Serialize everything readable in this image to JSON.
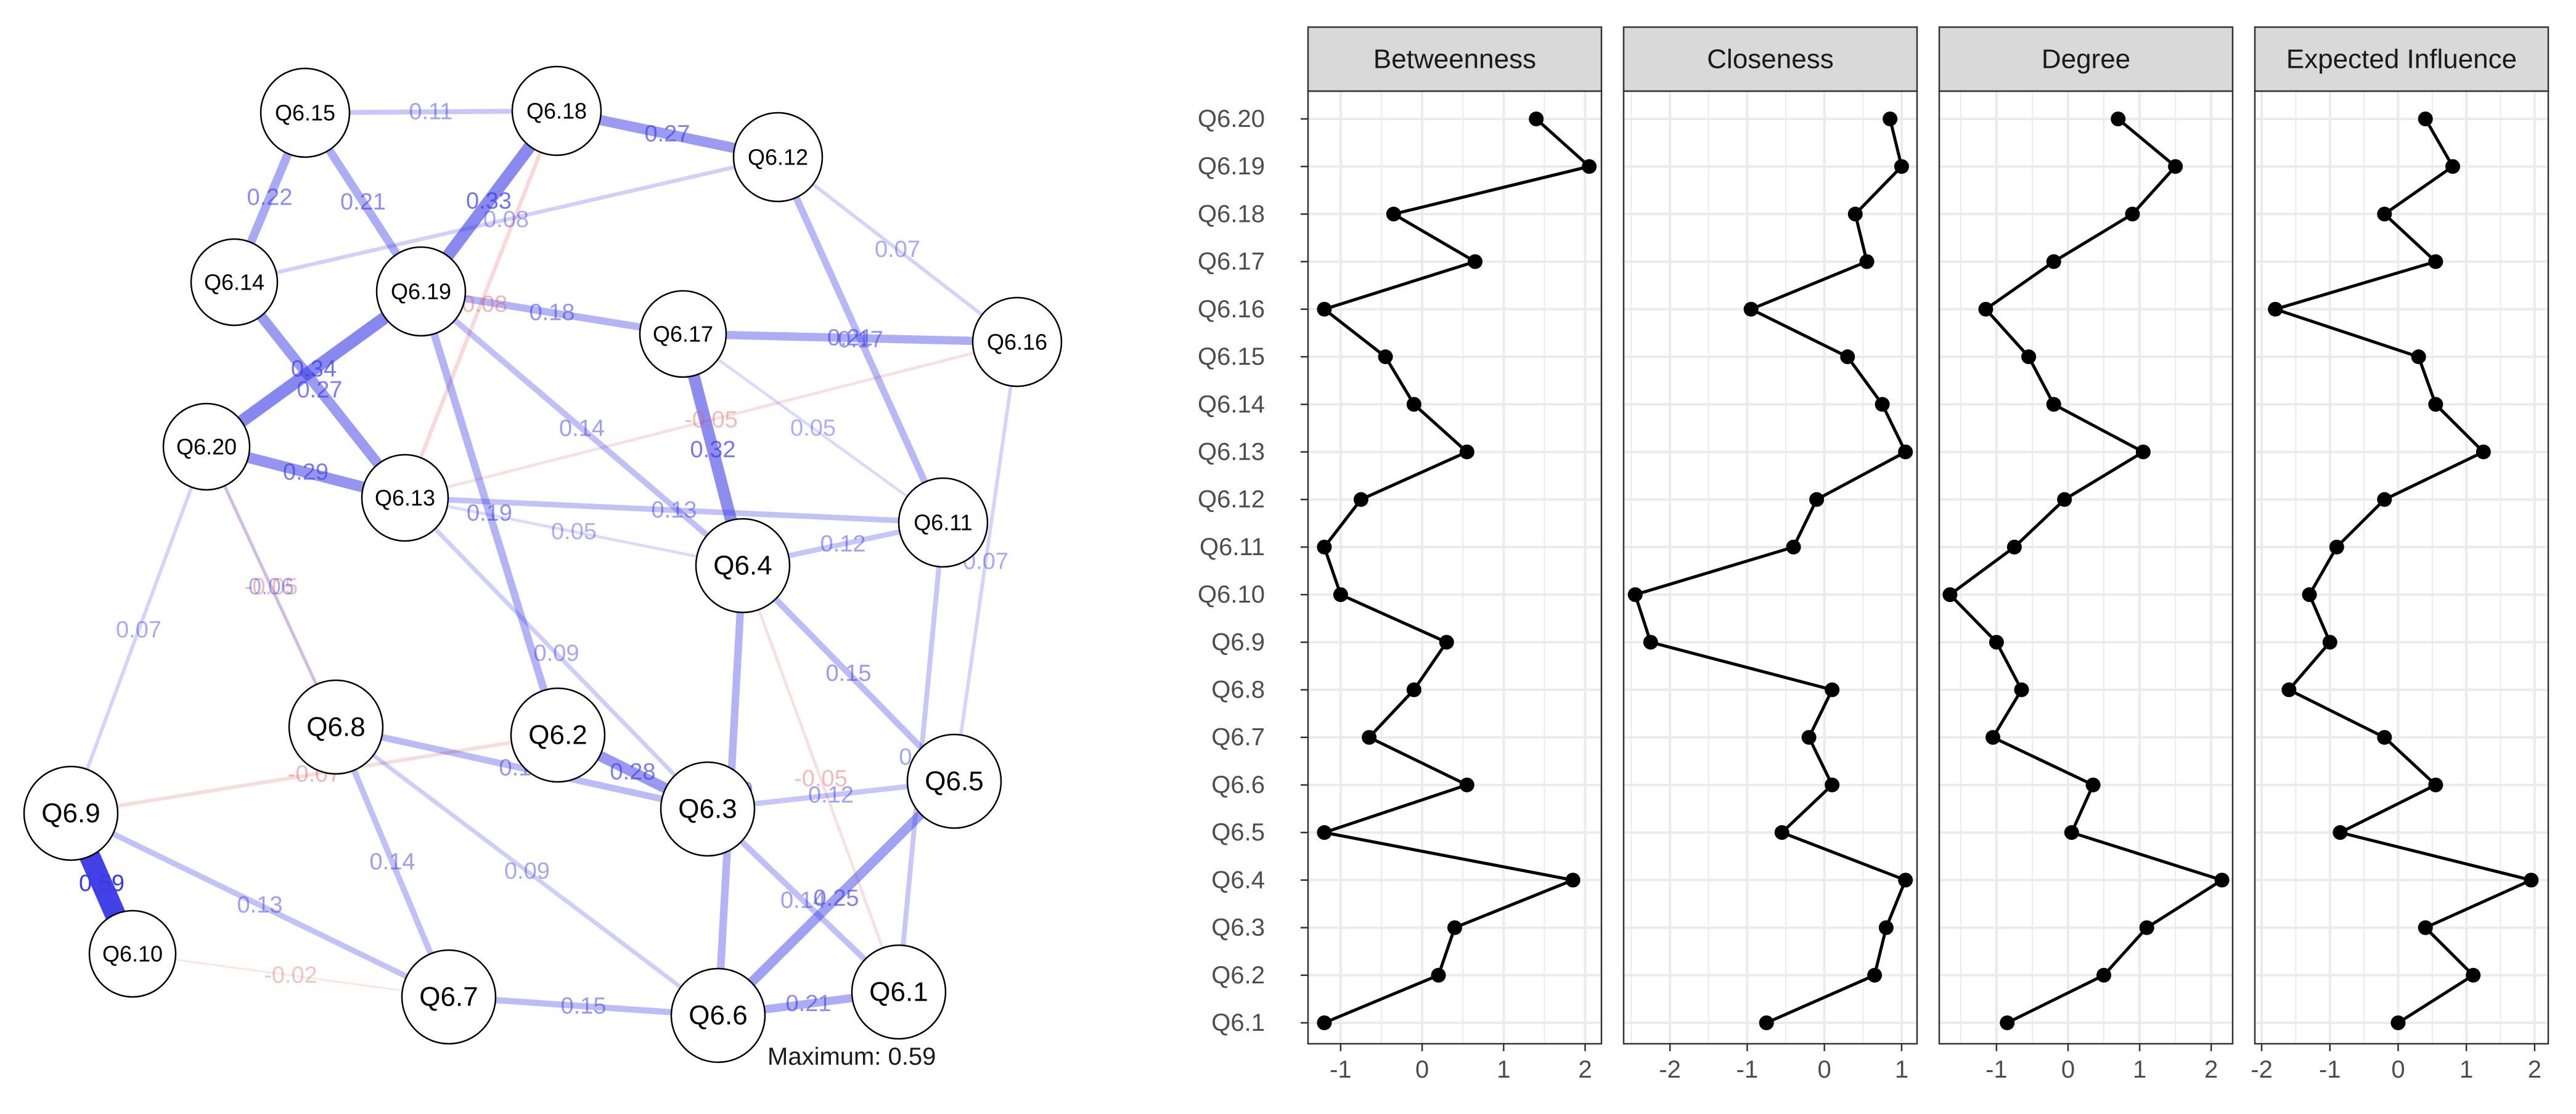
{
  "colors": {
    "positive_edge": "#3b3be6",
    "negative_edge": "#e05a5a",
    "node_fill": "#ffffff",
    "node_stroke": "#000000",
    "strip_fill": "#d9d9d9",
    "grid": "#ebebeb",
    "line": "#000000"
  },
  "chart_data": [
    {
      "type": "network",
      "title": "",
      "caption": "Maximum: 0.59",
      "maximum": 0.59,
      "nodes": [
        {
          "id": "Q6.1"
        },
        {
          "id": "Q6.2"
        },
        {
          "id": "Q6.3"
        },
        {
          "id": "Q6.4"
        },
        {
          "id": "Q6.5"
        },
        {
          "id": "Q6.6"
        },
        {
          "id": "Q6.7"
        },
        {
          "id": "Q6.8"
        },
        {
          "id": "Q6.9"
        },
        {
          "id": "Q6.10"
        },
        {
          "id": "Q6.11"
        },
        {
          "id": "Q6.12"
        },
        {
          "id": "Q6.13"
        },
        {
          "id": "Q6.14"
        },
        {
          "id": "Q6.15"
        },
        {
          "id": "Q6.16"
        },
        {
          "id": "Q6.17"
        },
        {
          "id": "Q6.18"
        },
        {
          "id": "Q6.19"
        },
        {
          "id": "Q6.20"
        }
      ],
      "edges": [
        {
          "source": "Q6.9",
          "target": "Q6.10",
          "weight": 0.59,
          "label": "0.59"
        },
        {
          "source": "Q6.20",
          "target": "Q6.19",
          "weight": 0.34,
          "label": "0.34"
        },
        {
          "source": "Q6.18",
          "target": "Q6.19",
          "weight": 0.33,
          "label": "0.33"
        },
        {
          "source": "Q6.17",
          "target": "Q6.4",
          "weight": 0.32,
          "label": "0.32"
        },
        {
          "source": "Q6.20",
          "target": "Q6.13",
          "weight": 0.29,
          "label": "0.29"
        },
        {
          "source": "Q6.2",
          "target": "Q6.3",
          "weight": 0.28,
          "label": "0.28"
        },
        {
          "source": "Q6.14",
          "target": "Q6.13",
          "weight": 0.27,
          "label": "0.27"
        },
        {
          "source": "Q6.18",
          "target": "Q6.12",
          "weight": 0.27,
          "label": "0.27"
        },
        {
          "source": "Q6.6",
          "target": "Q6.5",
          "weight": 0.25,
          "label": "0.25"
        },
        {
          "source": "Q6.15",
          "target": "Q6.14",
          "weight": 0.22,
          "label": "0.22"
        },
        {
          "source": "Q6.17",
          "target": "Q6.16",
          "weight": 0.21,
          "label": "0.21"
        },
        {
          "source": "Q6.6",
          "target": "Q6.1",
          "weight": 0.21,
          "label": "0.21"
        },
        {
          "source": "Q6.15",
          "target": "Q6.19",
          "weight": 0.21,
          "label": "0.21"
        },
        {
          "source": "Q6.19",
          "target": "Q6.2",
          "weight": 0.19,
          "label": "0.19"
        },
        {
          "source": "Q6.4",
          "target": "Q6.6",
          "weight": 0.19,
          "label": "0.19"
        },
        {
          "source": "Q6.19",
          "target": "Q6.17",
          "weight": 0.18,
          "label": "0.18"
        },
        {
          "source": "Q6.12",
          "target": "Q6.11",
          "weight": 0.17,
          "label": "0.17"
        },
        {
          "source": "Q6.8",
          "target": "Q6.3",
          "weight": 0.16,
          "label": "0.16"
        },
        {
          "source": "Q6.7",
          "target": "Q6.6",
          "weight": 0.15,
          "label": "0.15"
        },
        {
          "source": "Q6.4",
          "target": "Q6.5",
          "weight": 0.15,
          "label": "0.15"
        },
        {
          "source": "Q6.8",
          "target": "Q6.7",
          "weight": 0.14,
          "label": "0.14"
        },
        {
          "source": "Q6.3",
          "target": "Q6.1",
          "weight": 0.14,
          "label": "0.14"
        },
        {
          "source": "Q6.19",
          "target": "Q6.4",
          "weight": 0.14,
          "label": "0.14"
        },
        {
          "source": "Q6.13",
          "target": "Q6.11",
          "weight": 0.13,
          "label": "0.13"
        },
        {
          "source": "Q6.9",
          "target": "Q6.7",
          "weight": 0.13,
          "label": "0.13"
        },
        {
          "source": "Q6.4",
          "target": "Q6.11",
          "weight": 0.12,
          "label": "0.12"
        },
        {
          "source": "Q6.3",
          "target": "Q6.5",
          "weight": 0.12,
          "label": "0.12"
        },
        {
          "source": "Q6.15",
          "target": "Q6.18",
          "weight": 0.11,
          "label": "0.11"
        },
        {
          "source": "Q6.11",
          "target": "Q6.1",
          "weight": 0.11,
          "label": "0.11"
        },
        {
          "source": "Q6.8",
          "target": "Q6.6",
          "weight": 0.09,
          "label": "0.09"
        },
        {
          "source": "Q6.13",
          "target": "Q6.3",
          "weight": 0.09,
          "label": "0.09"
        },
        {
          "source": "Q6.14",
          "target": "Q6.12",
          "weight": 0.08,
          "label": "0.08"
        },
        {
          "source": "Q6.9",
          "target": "Q6.20",
          "weight": 0.07,
          "label": "0.07"
        },
        {
          "source": "Q6.16",
          "target": "Q6.5",
          "weight": 0.07,
          "label": "0.07"
        },
        {
          "source": "Q6.12",
          "target": "Q6.16",
          "weight": 0.07,
          "label": "0.07"
        },
        {
          "source": "Q6.13",
          "target": "Q6.4",
          "weight": 0.05,
          "label": "0.05"
        },
        {
          "source": "Q6.17",
          "target": "Q6.11",
          "weight": 0.05,
          "label": "0.05"
        },
        {
          "source": "Q6.8",
          "target": "Q6.20",
          "weight": 0.06,
          "label": "0.06"
        },
        {
          "source": "Q6.18",
          "target": "Q6.13",
          "weight": -0.08,
          "label": "-0.08"
        },
        {
          "source": "Q6.9",
          "target": "Q6.2",
          "weight": -0.07,
          "label": "-0.07"
        },
        {
          "source": "Q6.20",
          "target": "Q6.8",
          "weight": -0.05,
          "label": "-0.05"
        },
        {
          "source": "Q6.4",
          "target": "Q6.1",
          "weight": -0.05,
          "label": "-0.05"
        },
        {
          "source": "Q6.16",
          "target": "Q6.13",
          "weight": -0.05,
          "label": "-0.05"
        },
        {
          "source": "Q6.10",
          "target": "Q6.7",
          "weight": -0.02,
          "label": "-0.02"
        }
      ]
    },
    {
      "type": "line",
      "title": "",
      "facets": [
        "Betweenness",
        "Closeness",
        "Degree",
        "Expected Influence"
      ],
      "categories": [
        "Q6.20",
        "Q6.19",
        "Q6.18",
        "Q6.17",
        "Q6.16",
        "Q6.15",
        "Q6.14",
        "Q6.13",
        "Q6.12",
        "Q6.11",
        "Q6.10",
        "Q6.9",
        "Q6.8",
        "Q6.7",
        "Q6.6",
        "Q6.5",
        "Q6.4",
        "Q6.3",
        "Q6.2",
        "Q6.1"
      ],
      "series": [
        {
          "name": "Betweenness",
          "values": [
            1.4,
            2.05,
            -0.35,
            0.65,
            -1.2,
            -0.45,
            -0.1,
            0.55,
            -0.75,
            -1.2,
            -1.0,
            0.3,
            -0.1,
            -0.65,
            0.55,
            -1.2,
            1.85,
            0.4,
            0.2,
            -1.2
          ],
          "xlim": [
            -1.4,
            2.2
          ],
          "ticks": [
            -1,
            0,
            1,
            2
          ]
        },
        {
          "name": "Closeness",
          "values": [
            0.85,
            1.0,
            0.4,
            0.55,
            -0.95,
            0.3,
            0.75,
            1.05,
            -0.1,
            -0.4,
            -2.45,
            -2.25,
            0.1,
            -0.2,
            0.1,
            -0.55,
            1.05,
            0.8,
            0.65,
            -0.75
          ],
          "xlim": [
            -2.6,
            1.2
          ],
          "ticks": [
            -2,
            -1,
            0,
            1
          ]
        },
        {
          "name": "Degree",
          "values": [
            0.7,
            1.5,
            0.9,
            -0.2,
            -1.15,
            -0.55,
            -0.2,
            1.05,
            -0.05,
            -0.75,
            -1.65,
            -1.0,
            -0.65,
            -1.05,
            0.35,
            0.05,
            2.15,
            1.1,
            0.5,
            -0.85
          ],
          "xlim": [
            -1.8,
            2.3
          ],
          "ticks": [
            -1,
            0,
            1,
            2
          ]
        },
        {
          "name": "Expected Influence",
          "values": [
            0.4,
            0.8,
            -0.2,
            0.55,
            -1.8,
            0.3,
            0.55,
            1.25,
            -0.2,
            -0.9,
            -1.3,
            -1.0,
            -1.6,
            -0.2,
            0.55,
            -0.85,
            1.95,
            0.4,
            1.1,
            0.0
          ],
          "xlim": [
            -2.1,
            2.2
          ],
          "ticks": [
            -2,
            -1,
            0,
            1,
            2
          ]
        }
      ]
    }
  ]
}
